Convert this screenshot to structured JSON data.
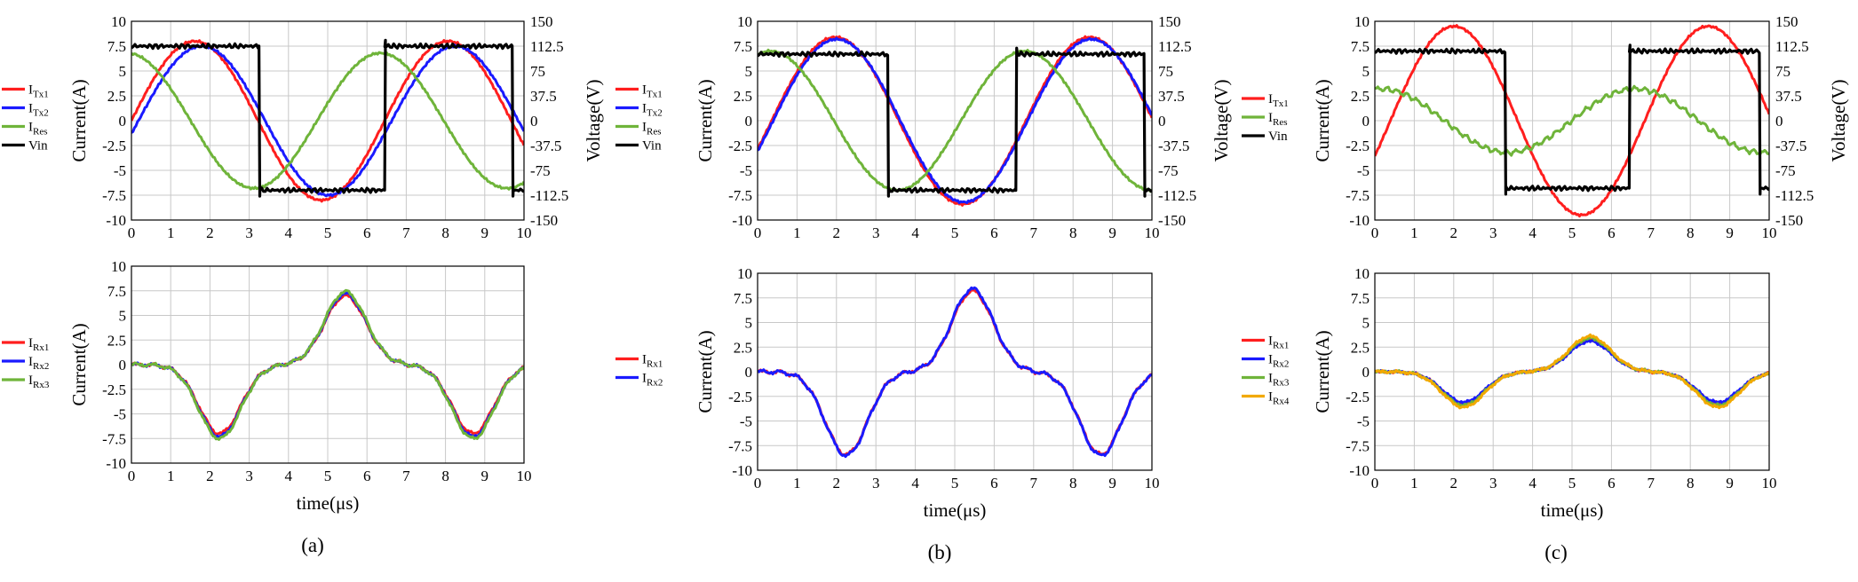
{
  "figure": {
    "panel_labels": [
      "(a)",
      "(b)",
      "(c)"
    ],
    "colors": {
      "red": "#ff1e1e",
      "blue": "#1a1aff",
      "green": "#6fb43a",
      "black": "#000000",
      "orange": "#f2a900",
      "grid": "#c8c8c8"
    }
  },
  "chart_data": [
    {
      "id": "a_top",
      "type": "line",
      "panel": "(a)",
      "xlim": [
        0,
        10
      ],
      "xticks": [
        0,
        1,
        2,
        3,
        4,
        5,
        6,
        7,
        8,
        9,
        10
      ],
      "ylabel": "Current(A)",
      "ylim": [
        -10,
        10
      ],
      "yticks": [
        -10,
        -7.5,
        -5,
        -2.5,
        0,
        2.5,
        5,
        7.5,
        10
      ],
      "ylabel_right": "Voltage(V)",
      "ylim_right": [
        -150,
        150
      ],
      "yticks_right": [
        -150,
        -112.5,
        -75,
        -37.5,
        0,
        37.5,
        75,
        112.5,
        150
      ],
      "grid": true,
      "legend_position": "left outside",
      "series": [
        {
          "name": "I_Tx1",
          "main": "I",
          "sub": "Tx1",
          "color": "red",
          "kind": "sine",
          "amp": 8,
          "phase_deg": 0,
          "x0": 0,
          "x1": 10
        },
        {
          "name": "I_Tx2",
          "main": "I",
          "sub": "Tx2",
          "color": "blue",
          "kind": "sine",
          "amp": 7.5,
          "phase_deg": -10,
          "x0": 0,
          "x1": 10
        },
        {
          "name": "I_Res",
          "main": "I",
          "sub": "Res",
          "color": "green",
          "kind": "sine",
          "amp": 6.8,
          "phase_deg": 96,
          "x0": 0,
          "x1": 10
        },
        {
          "name": "Vin",
          "main": "Vin",
          "sub": "",
          "color": "black",
          "kind": "square",
          "high": 7.5,
          "low": -7.0,
          "x0": 0,
          "x1": 10,
          "edges": [
            {
              "x": 3.25,
              "to": -7.0
            },
            {
              "x": 6.45,
              "to": 7.5
            },
            {
              "x": 9.7,
              "to": -7.0
            }
          ]
        }
      ]
    },
    {
      "id": "a_bottom",
      "type": "line",
      "panel": "(a)",
      "xlabel": "time(μs)",
      "xlim": [
        0,
        10
      ],
      "xticks": [
        0,
        1,
        2,
        3,
        4,
        5,
        6,
        7,
        8,
        9,
        10
      ],
      "ylabel": "Current(A)",
      "ylim": [
        -10,
        10
      ],
      "yticks": [
        -10,
        -7.5,
        -5,
        -2.5,
        0,
        2.5,
        5,
        7.5,
        10
      ],
      "grid": true,
      "legend_position": "left outside",
      "series": [
        {
          "name": "I_Rx1",
          "main": "I",
          "sub": "Rx1",
          "color": "red",
          "kind": "rx",
          "peak": 7.0,
          "trough": -7.0
        },
        {
          "name": "I_Rx2",
          "main": "I",
          "sub": "Rx2",
          "color": "blue",
          "kind": "rx",
          "peak": 7.2,
          "trough": -7.3
        },
        {
          "name": "I_Rx3",
          "main": "I",
          "sub": "Rx3",
          "color": "green",
          "kind": "rx",
          "peak": 7.4,
          "trough": -7.5
        }
      ]
    },
    {
      "id": "b_top",
      "type": "line",
      "panel": "(b)",
      "xlim": [
        0,
        10
      ],
      "xticks": [
        0,
        1,
        2,
        3,
        4,
        5,
        6,
        7,
        8,
        9,
        10
      ],
      "ylabel": "Current(A)",
      "ylim": [
        -10,
        10
      ],
      "yticks": [
        -10,
        -7.5,
        -5,
        -2.5,
        0,
        2.5,
        5,
        7.5,
        10
      ],
      "ylabel_right": "Voltage(V)",
      "ylim_right": [
        -150,
        150
      ],
      "yticks_right": [
        -150,
        -112.5,
        -75,
        -37.5,
        0,
        37.5,
        75,
        112.5,
        150
      ],
      "grid": true,
      "legend_position": "left outside",
      "series": [
        {
          "name": "I_Tx1",
          "main": "I",
          "sub": "Tx1",
          "color": "red",
          "kind": "sine",
          "amp": 8.4,
          "phase_deg": -20,
          "x0": 0,
          "x1": 10
        },
        {
          "name": "I_Tx2",
          "main": "I",
          "sub": "Tx2",
          "color": "blue",
          "kind": "sine",
          "amp": 8.2,
          "phase_deg": -22,
          "x0": 0,
          "x1": 10
        },
        {
          "name": "I_Res",
          "main": "I",
          "sub": "Res",
          "color": "green",
          "kind": "sine",
          "amp": 7.0,
          "phase_deg": 72,
          "x0": 0,
          "x1": 10
        },
        {
          "name": "Vin",
          "main": "Vin",
          "sub": "",
          "color": "black",
          "kind": "square",
          "high": 6.7,
          "low": -7.0,
          "x0": 0,
          "x1": 10,
          "edges": [
            {
              "x": 3.3,
              "to": -7.0
            },
            {
              "x": 6.55,
              "to": 6.7
            },
            {
              "x": 9.8,
              "to": -7.0
            }
          ]
        }
      ]
    },
    {
      "id": "b_bottom",
      "type": "line",
      "panel": "(b)",
      "xlabel": "time(μs)",
      "xlim": [
        0,
        10
      ],
      "xticks": [
        0,
        1,
        2,
        3,
        4,
        5,
        6,
        7,
        8,
        9,
        10
      ],
      "ylabel": "Current(A)",
      "ylim": [
        -10,
        10
      ],
      "yticks": [
        -10,
        -7.5,
        -5,
        -2.5,
        0,
        2.5,
        5,
        7.5,
        10
      ],
      "grid": true,
      "legend_position": "left outside",
      "series": [
        {
          "name": "I_Rx1",
          "main": "I",
          "sub": "Rx1",
          "color": "red",
          "kind": "rx",
          "peak": 8.2,
          "trough": -8.4
        },
        {
          "name": "I_Rx2",
          "main": "I",
          "sub": "Rx2",
          "color": "blue",
          "kind": "rx",
          "peak": 8.4,
          "trough": -8.5
        }
      ]
    },
    {
      "id": "c_top",
      "type": "line",
      "panel": "(c)",
      "xlim": [
        0,
        10
      ],
      "xticks": [
        0,
        1,
        2,
        3,
        4,
        5,
        6,
        7,
        8,
        9,
        10
      ],
      "ylabel": "Current(A)",
      "ylim": [
        -10,
        10
      ],
      "yticks": [
        -10,
        -7.5,
        -5,
        -2.5,
        0,
        2.5,
        5,
        7.5,
        10
      ],
      "ylabel_right": "Voltage(V)",
      "ylim_right": [
        -150,
        150
      ],
      "yticks_right": [
        -150,
        -112.5,
        -75,
        -37.5,
        0,
        37.5,
        75,
        112.5,
        150
      ],
      "grid": true,
      "legend_position": "left outside",
      "series": [
        {
          "name": "I_Tx1",
          "main": "I",
          "sub": "Tx1",
          "color": "red",
          "kind": "sine",
          "amp": 9.5,
          "phase_deg": -22,
          "x0": 0,
          "x1": 10
        },
        {
          "name": "I_Res",
          "main": "I",
          "sub": "Res",
          "color": "green",
          "kind": "res_c"
        },
        {
          "name": "Vin",
          "main": "Vin",
          "sub": "",
          "color": "black",
          "kind": "square",
          "high": 7.0,
          "low": -6.8,
          "x0": 0,
          "x1": 10,
          "edges": [
            {
              "x": 3.3,
              "to": -6.8
            },
            {
              "x": 6.45,
              "to": 7.0
            },
            {
              "x": 9.75,
              "to": -6.8
            }
          ]
        }
      ]
    },
    {
      "id": "c_bottom",
      "type": "line",
      "panel": "(c)",
      "xlabel": "time(μs)",
      "xlim": [
        0,
        10
      ],
      "xticks": [
        0,
        1,
        2,
        3,
        4,
        5,
        6,
        7,
        8,
        9,
        10
      ],
      "ylabel": "Current(A)",
      "ylim": [
        -10,
        10
      ],
      "yticks": [
        -10,
        -7.5,
        -5,
        -2.5,
        0,
        2.5,
        5,
        7.5,
        10
      ],
      "grid": true,
      "legend_position": "left outside",
      "series": [
        {
          "name": "I_Rx1",
          "main": "I",
          "sub": "Rx1",
          "color": "red",
          "kind": "rx",
          "peak": 3.2,
          "trough": -3.2
        },
        {
          "name": "I_Rx2",
          "main": "I",
          "sub": "Rx2",
          "color": "blue",
          "kind": "rx",
          "peak": 3.1,
          "trough": -3.1
        },
        {
          "name": "I_Rx3",
          "main": "I",
          "sub": "Rx3",
          "color": "green",
          "kind": "rx",
          "peak": 3.4,
          "trough": -3.4
        },
        {
          "name": "I_Rx4",
          "main": "I",
          "sub": "Rx4",
          "color": "orange",
          "kind": "rx",
          "peak": 3.6,
          "trough": -3.6
        }
      ]
    }
  ]
}
